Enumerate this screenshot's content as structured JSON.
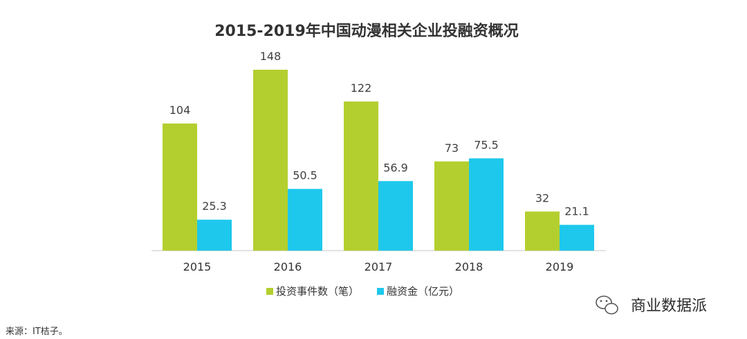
{
  "chart_data": {
    "type": "bar",
    "title": "2015-2019年中国动漫相关企业投融资概况",
    "categories": [
      "2015",
      "2016",
      "2017",
      "2018",
      "2019"
    ],
    "series": [
      {
        "name": "投资事件数（笔）",
        "values": [
          104,
          148,
          122,
          73,
          32
        ],
        "value_labels": [
          "104",
          "148",
          "122",
          "73",
          "32"
        ],
        "color": "#b3cf2f"
      },
      {
        "name": "融资金（亿元）",
        "values": [
          25.3,
          50.5,
          56.9,
          75.5,
          21.1
        ],
        "value_labels": [
          "25.3",
          "50.5",
          "56.9",
          "75.5",
          "21.1"
        ],
        "color": "#1ec8ec"
      }
    ],
    "xlabel": "",
    "ylabel": "",
    "ylim": [
      0,
      165
    ],
    "grid": false,
    "legend": "bottom-center"
  },
  "source": "来源：IT桔子。",
  "watermark": {
    "text": "商业数据派",
    "icon": "wechat-icon"
  }
}
